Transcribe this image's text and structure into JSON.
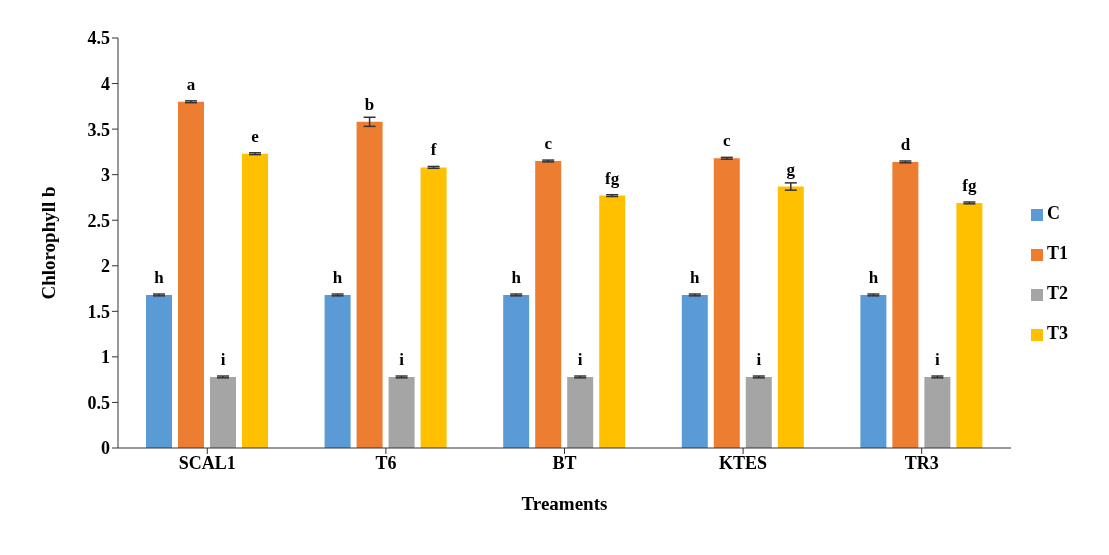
{
  "chart_data": {
    "type": "bar",
    "xlabel": "Treaments",
    "ylabel": "Chlorophyll b",
    "categories": [
      "SCAL1",
      "T6",
      "BT",
      "KTES",
      "TR3"
    ],
    "series": [
      {
        "name": "C",
        "color": "#5b9bd5",
        "values": [
          1.68,
          1.68,
          1.68,
          1.68,
          1.68
        ],
        "errors": [
          0.01,
          0.01,
          0.01,
          0.01,
          0.01
        ],
        "value_labels": [
          "h",
          "h",
          "h",
          "h",
          "h"
        ]
      },
      {
        "name": "T1",
        "color": "#ed7d31",
        "values": [
          3.8,
          3.58,
          3.15,
          3.18,
          3.14
        ],
        "errors": [
          0.01,
          0.05,
          0.01,
          0.01,
          0.01
        ],
        "value_labels": [
          "a",
          "b",
          "c",
          "c",
          "d"
        ]
      },
      {
        "name": "T2",
        "color": "#a5a5a5",
        "values": [
          0.78,
          0.78,
          0.78,
          0.78,
          0.78
        ],
        "errors": [
          0.01,
          0.01,
          0.01,
          0.01,
          0.01
        ],
        "value_labels": [
          "i",
          "i",
          "i",
          "i",
          "i"
        ]
      },
      {
        "name": "T3",
        "color": "#ffc000",
        "values": [
          3.23,
          3.08,
          2.77,
          2.87,
          2.69
        ],
        "errors": [
          0.01,
          0.01,
          0.01,
          0.04,
          0.01
        ],
        "value_labels": [
          "e",
          "f",
          "fg",
          "g",
          "fg"
        ]
      }
    ],
    "ylim": [
      0,
      4.5
    ],
    "yticks": [
      0,
      0.5,
      1,
      1.5,
      2,
      2.5,
      3,
      3.5,
      4,
      4.5
    ],
    "grid": false,
    "legend": "right"
  }
}
